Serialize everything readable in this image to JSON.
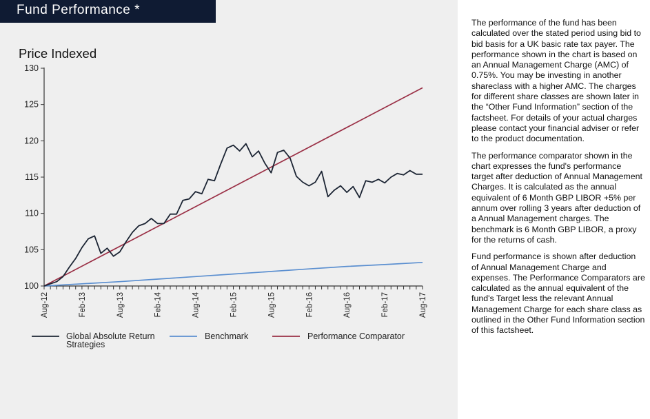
{
  "header": {
    "title": "Fund Performance *"
  },
  "colors": {
    "header_bg": "#0f1b33",
    "panel_bg": "#efefef",
    "fund": "#1b2433",
    "benchmark": "#5b8fd0",
    "comparator": "#9a2f45"
  },
  "chart_data": {
    "type": "line",
    "title": "Price Indexed",
    "xlabel": "",
    "ylabel": "Price Indexed",
    "ylim": [
      100,
      130
    ],
    "yticks": [
      100,
      105,
      110,
      115,
      120,
      125,
      130
    ],
    "xlim": [
      0,
      60
    ],
    "xtick_labels": [
      "Aug-12",
      "Feb-13",
      "Aug-13",
      "Feb-14",
      "Aug-14",
      "Feb-15",
      "Aug-15",
      "Feb-16",
      "Aug-16",
      "Feb-17",
      "Aug-17"
    ],
    "xtick_months": [
      0,
      6,
      12,
      18,
      24,
      30,
      36,
      42,
      48,
      54,
      60
    ],
    "minor_tick_interval_months": 1,
    "legend_position": "bottom",
    "series": [
      {
        "name": "Global Absolute Return Strategies",
        "x": [
          0,
          1,
          2,
          3,
          4,
          5,
          6,
          7,
          8,
          9,
          10,
          11,
          12,
          13,
          14,
          15,
          16,
          17,
          18,
          19,
          20,
          21,
          22,
          23,
          24,
          25,
          26,
          27,
          28,
          29,
          30,
          31,
          32,
          33,
          34,
          35,
          36,
          37,
          38,
          39,
          40,
          41,
          42,
          43,
          44,
          45,
          46,
          47,
          48,
          49,
          50,
          51,
          52,
          53,
          54,
          55,
          56,
          57,
          58,
          59,
          60
        ],
        "values": [
          100,
          100.3,
          100.6,
          101.3,
          102.6,
          103.8,
          105.3,
          106.5,
          106.9,
          104.5,
          105.2,
          104.1,
          104.7,
          106.1,
          107.4,
          108.3,
          108.6,
          109.3,
          108.6,
          108.6,
          109.9,
          109.9,
          111.8,
          112.0,
          113.0,
          112.7,
          114.7,
          114.5,
          116.8,
          119.0,
          119.4,
          118.6,
          119.6,
          117.8,
          118.6,
          116.9,
          115.6,
          118.4,
          118.7,
          117.6,
          115.1,
          114.3,
          113.8,
          114.3,
          115.8,
          112.3,
          113.2,
          113.8,
          112.9,
          113.7,
          112.2,
          114.5,
          114.3,
          114.7,
          114.2,
          115.0,
          115.5,
          115.3,
          115.9,
          115.4,
          115.4
        ],
        "color": "#1b2433"
      },
      {
        "name": "Benchmark",
        "x": [
          0,
          6,
          12,
          18,
          24,
          30,
          36,
          42,
          48,
          54,
          60
        ],
        "values": [
          100,
          100.3,
          100.6,
          100.95,
          101.3,
          101.65,
          102.0,
          102.35,
          102.7,
          102.95,
          103.25
        ],
        "color": "#5b8fd0"
      },
      {
        "name": "Performance Comparator",
        "x": [
          0,
          60
        ],
        "values": [
          100,
          127.3
        ],
        "color": "#9a2f45"
      }
    ]
  },
  "description": {
    "paragraphs": [
      "The performance of the fund has been calculated over the stated period using bid to bid basis for a UK basic rate tax payer. The performance shown in the chart is based on an Annual Management Charge (AMC) of 0.75%. You may be investing in another shareclass with a higher AMC. The charges for different share classes are shown later in the “Other Fund Information” section of the factsheet. For details of your actual charges please contact your financial adviser or refer to the product documentation.",
      "The performance comparator shown in the chart expresses the fund's performance target after deduction of Annual Management Charges. It is calculated as the annual equivalent of 6 Month GBP LIBOR +5% per annum over rolling 3 years after deduction of a Annual Management charges. The benchmark is 6 Month GBP LIBOR, a proxy for the returns of cash.",
      "Fund performance is shown after deduction of Annual Management Charge and expenses. The Performance Comparators are calculated as the annual equivalent of the fund's Target less the relevant Annual Management Charge for each share class as outlined in the Other Fund Information section of this factsheet."
    ]
  }
}
